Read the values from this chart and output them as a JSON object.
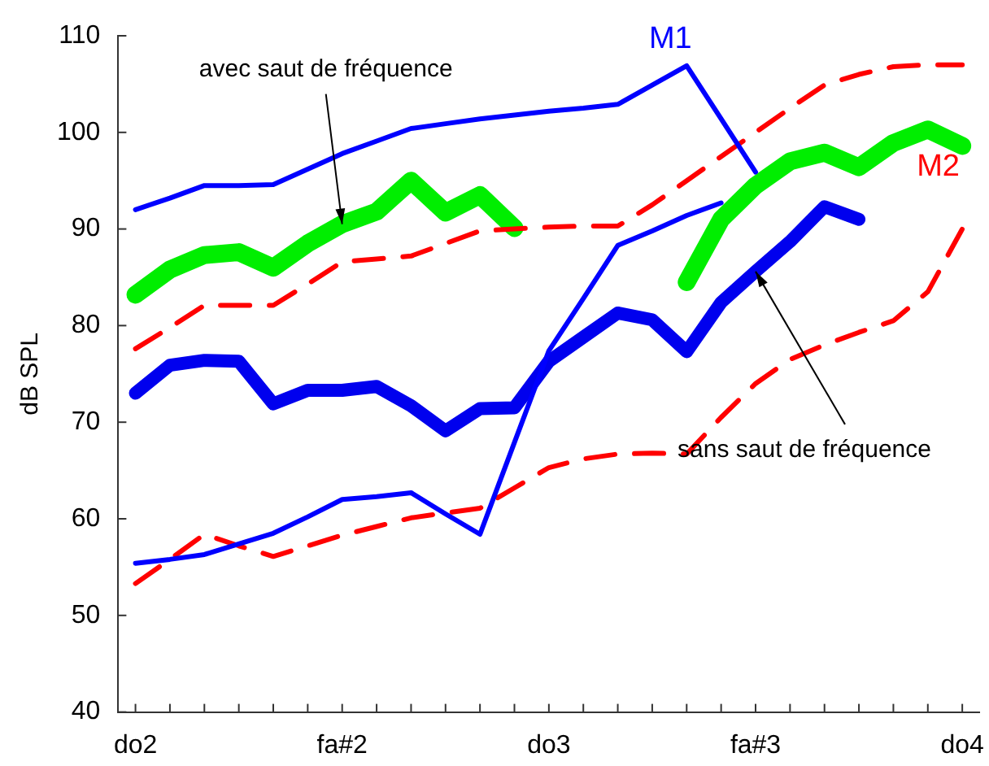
{
  "chart_data": {
    "type": "line",
    "ylabel": "dB SPL",
    "ylim": [
      40,
      110
    ],
    "categories": [
      "do2",
      null,
      null,
      null,
      null,
      null,
      "fa#2",
      null,
      null,
      null,
      null,
      null,
      "do3",
      null,
      null,
      null,
      null,
      null,
      "fa#3",
      null,
      null,
      null,
      null,
      null,
      "do4"
    ],
    "yticks": [
      40,
      50,
      60,
      70,
      80,
      90,
      100,
      110
    ],
    "grid": false,
    "legend": false,
    "series": [
      {
        "name": "M1",
        "color": "#0000ff",
        "line_style": "solid",
        "values": [
          92,
          93.2,
          94.5,
          94.5,
          94.6,
          96.2,
          97.8,
          99.1,
          100.4,
          100.9,
          101.4,
          101.8,
          102.2,
          102.5,
          102.9,
          104.9,
          106.9,
          101.4,
          95.9,
          null,
          null,
          null,
          null,
          null,
          null
        ]
      },
      {
        "color": "#0000ff",
        "line_style": "solid",
        "values": [
          55.4,
          55.8,
          56.3,
          57.4,
          58.5,
          60.2,
          62.0,
          62.3,
          62.7,
          60.5,
          58.4,
          67.9,
          77.4,
          82.8,
          88.3,
          89.8,
          91.4,
          92.7,
          null,
          null,
          null,
          null,
          null,
          null,
          null
        ]
      },
      {
        "color": "#ff0000",
        "line_style": "dashed",
        "values": [
          77.6,
          79.8,
          82.1,
          82.1,
          82.1,
          84.3,
          86.6,
          86.9,
          87.2,
          88.5,
          89.8,
          90,
          90.2,
          90.3,
          90.3,
          92.5,
          95,
          97.5,
          100,
          102.5,
          104.9,
          106,
          106.8,
          107,
          107
        ]
      },
      {
        "name": "M2",
        "color": "#ff0000",
        "line_style": "dashed",
        "values": [
          53.3,
          55.8,
          58.4,
          57.2,
          56.1,
          57.2,
          58.3,
          59.2,
          60.1,
          60.6,
          61.1,
          63.2,
          65.3,
          66.2,
          66.7,
          66.8,
          66.7,
          70.5,
          74,
          76.5,
          78,
          79.3,
          80.5,
          83.5,
          90
        ]
      },
      {
        "color": "#00ee00",
        "line_style": "solid",
        "values": [
          83.2,
          85.8,
          87.3,
          87.6,
          86.0,
          88.5,
          90.5,
          91.8,
          95,
          91.7,
          93.5,
          90.1,
          null,
          null,
          null,
          null,
          null,
          null,
          null,
          null,
          null,
          null,
          null,
          null,
          null
        ]
      },
      {
        "color": "#00ee00",
        "line_style": "solid",
        "values": [
          null,
          null,
          null,
          null,
          null,
          null,
          null,
          null,
          null,
          null,
          null,
          null,
          null,
          null,
          null,
          null,
          84.5,
          91,
          94.5,
          97,
          97.9,
          96.4,
          98.9,
          100.3,
          98.6
        ]
      },
      {
        "color": "#0000ee",
        "line_style": "solid",
        "values": [
          73.0,
          75.9,
          76.4,
          76.3,
          71.9,
          73.3,
          73.3,
          73.7,
          71.7,
          69.1,
          71.4,
          71.5,
          76.3,
          78.8,
          81.3,
          80.6,
          77.3,
          82.4,
          85.6,
          88.7,
          92.3,
          91,
          null,
          null,
          null
        ]
      }
    ],
    "annotations": [
      {
        "text": "avec saut de fréquence",
        "x": "fa#2",
        "y": 90.5
      },
      {
        "text": "sans saut de fréquence",
        "x": "fa#3",
        "y": 85.6
      }
    ]
  }
}
